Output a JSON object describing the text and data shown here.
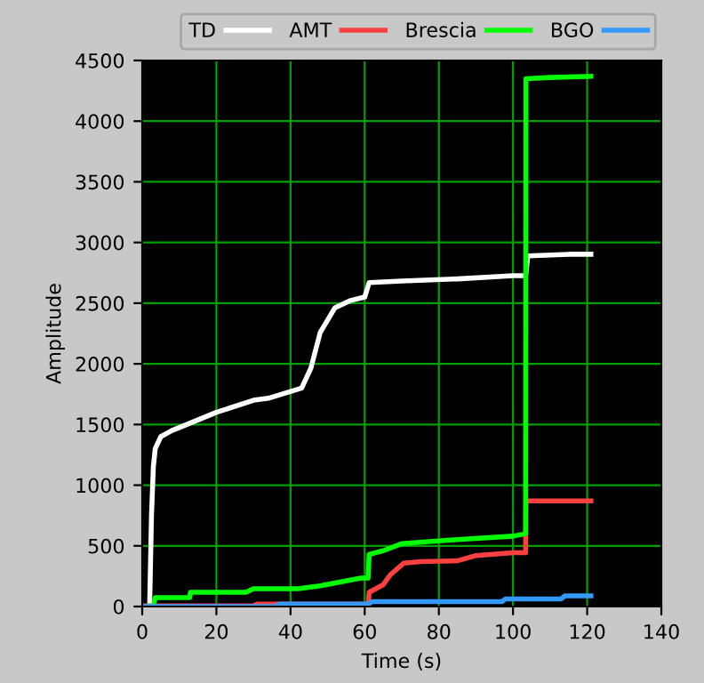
{
  "chart_data": {
    "type": "line",
    "xlabel": "Time (s)",
    "ylabel": "Amplitude",
    "xlim": [
      0,
      140
    ],
    "ylim": [
      0,
      4500
    ],
    "xticks": [
      0,
      20,
      40,
      60,
      80,
      100,
      120,
      140
    ],
    "yticks": [
      0,
      500,
      1000,
      1500,
      2000,
      2500,
      3000,
      3500,
      4000,
      4500
    ],
    "grid": true,
    "legend": "top",
    "marker": "none",
    "line_style": "solid",
    "series": [
      {
        "name": "TD",
        "color": "#ffffff",
        "x": [
          0,
          2,
          2.5,
          3,
          3.5,
          5,
          8,
          12,
          20,
          30,
          34,
          43,
          45.5,
          48,
          52,
          56,
          60,
          61.2,
          70,
          85,
          100,
          103.4,
          104,
          115,
          121
        ],
        "values": [
          0,
          0,
          750,
          1150,
          1300,
          1400,
          1450,
          1500,
          1600,
          1700,
          1716,
          1800,
          1965,
          2258,
          2463,
          2520,
          2550,
          2670,
          2683,
          2700,
          2727,
          2727,
          2890,
          2903,
          2903
        ]
      },
      {
        "name": "AMT",
        "color": "#ff4040",
        "x": [
          0,
          30,
          31,
          61,
          61.2,
          65,
          67,
          70.5,
          75,
          85,
          90,
          100,
          103.4,
          103.5,
          121
        ],
        "values": [
          5,
          5,
          20,
          20,
          117,
          180,
          264,
          357,
          370,
          377,
          420,
          444,
          444,
          870,
          870
        ]
      },
      {
        "name": "Brescia",
        "color": "#00ff00",
        "x": [
          0,
          3,
          3.5,
          12.8,
          13,
          28,
          30,
          42,
          48,
          53,
          59,
          60.9,
          61.2,
          65,
          70,
          85,
          100,
          103.4,
          103.5,
          110,
          121
        ],
        "values": [
          0,
          0,
          73,
          73,
          117,
          117,
          146,
          146,
          170,
          200,
          234,
          234,
          430,
          460,
          518,
          552,
          580,
          600,
          4350,
          4360,
          4370
        ]
      },
      {
        "name": "BGO",
        "color": "#3399ff",
        "x": [
          0,
          36,
          37,
          61,
          62,
          97,
          98,
          113,
          114,
          121
        ],
        "values": [
          0,
          0,
          20,
          20,
          40,
          40,
          63,
          63,
          88,
          88
        ]
      }
    ]
  }
}
